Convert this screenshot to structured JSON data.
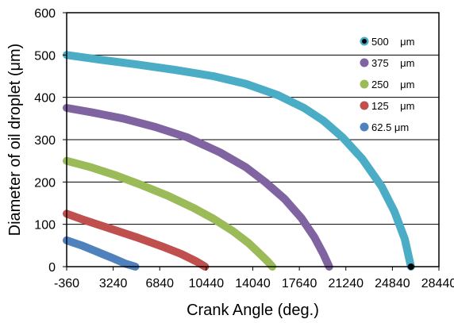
{
  "chart_data": {
    "type": "line",
    "title": "",
    "xlabel": "Crank Angle (deg.)",
    "ylabel": "Diameter of oil droplet  (μm)",
    "xlim": [
      -360,
      28440
    ],
    "ylim": [
      0,
      600
    ],
    "x_ticks": [
      -360,
      3240,
      6840,
      10440,
      14040,
      17640,
      21240,
      24840,
      28440
    ],
    "x_tick_labels": [
      "-360",
      "3240",
      "6840",
      "10440",
      "14040",
      "17640",
      "21240",
      "24840",
      "28440"
    ],
    "y_ticks": [
      0,
      100,
      200,
      300,
      400,
      500,
      600
    ],
    "y_tick_labels": [
      "0",
      "100",
      "200",
      "300",
      "400",
      "500",
      "600"
    ],
    "grid": "horizontal",
    "legend_position": "right",
    "series": [
      {
        "name": "500    μm",
        "color": "#4bacc6",
        "marker_color": "#000000",
        "x": [
          -360,
          2000,
          5000,
          8000,
          11000,
          13500,
          16000,
          18000,
          19500,
          21000,
          22500,
          24000,
          25000,
          25800,
          26280
        ],
        "y": [
          500,
          490,
          478,
          465,
          450,
          432,
          405,
          375,
          345,
          305,
          255,
          190,
          130,
          65,
          0
        ]
      },
      {
        "name": "375    μm",
        "color": "#8064a2",
        "x": [
          -360,
          1500,
          4000,
          6500,
          9000,
          11500,
          13500,
          15000,
          16500,
          17800,
          18800,
          19500,
          19950
        ],
        "y": [
          375,
          365,
          350,
          330,
          305,
          270,
          235,
          200,
          160,
          115,
          70,
          30,
          0
        ]
      },
      {
        "name": "250    μm",
        "color": "#9bbb59",
        "x": [
          -360,
          1500,
          3500,
          5500,
          7500,
          9500,
          11000,
          12500,
          13700,
          14600,
          15200,
          15550
        ],
        "y": [
          250,
          235,
          215,
          192,
          167,
          138,
          113,
          84,
          56,
          30,
          12,
          0
        ]
      },
      {
        "name": "125    μm",
        "color": "#c0504d",
        "x": [
          -360,
          1000,
          3000,
          5000,
          7000,
          8500,
          9700,
          10350
        ],
        "y": [
          125,
          110,
          90,
          70,
          48,
          30,
          12,
          0
        ]
      },
      {
        "name": "62.5 μm",
        "color": "#4f81bd",
        "x": [
          -360,
          800,
          2000,
          3200,
          4200,
          4950
        ],
        "y": [
          62,
          50,
          35,
          20,
          7,
          0
        ]
      }
    ]
  }
}
